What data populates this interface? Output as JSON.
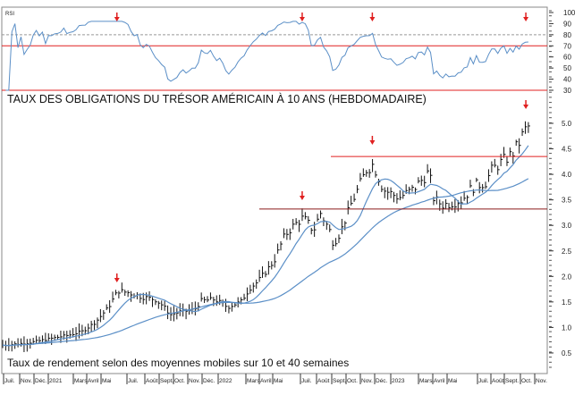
{
  "chart_data": {
    "type": "bar",
    "title": "TAUX DES OBLIGATIONS DU TRÉSOR AMÉRICAIN À 10 ANS (HEBDOMADAIRE)",
    "subtitle": "Taux de rendement selon des moyennes mobiles sur 10 et 40 semaines",
    "rsi_label": "RSI",
    "rsi_ticks": [
      "100",
      "90",
      "80",
      "70",
      "60",
      "50",
      "40",
      "30"
    ],
    "rsi_levels": {
      "dashed": 80,
      "upper": 70,
      "lower": 30
    },
    "y_ticks": [
      "5.0",
      "4.5",
      "4.0",
      "3.5",
      "3.0",
      "2.5",
      "2.0",
      "1.5",
      "1.0",
      "0.5"
    ],
    "ylim": [
      0.3,
      5.3
    ],
    "resistance_levels": [
      4.35,
      3.32
    ],
    "x_ticks": [
      "Juil.",
      "Nov.",
      "Déc.",
      "2021",
      "Mars",
      "Avril",
      "Mai",
      "Juil.",
      "Août",
      "Sept.",
      "Oct.",
      "Nov.",
      "Déc.",
      "2022",
      "Mars",
      "Avril",
      "Mai",
      "Juil.",
      "Août",
      "Sept.",
      "Oct.",
      "Nov.",
      "Déc.",
      "2023",
      "Mars",
      "Avril",
      "Mai",
      "Juil.",
      "Août",
      "Sept.",
      "Oct.",
      "Nov."
    ],
    "series_keypoints_month_yield": [
      [
        0,
        0.65
      ],
      [
        2,
        0.7
      ],
      [
        4,
        0.8
      ],
      [
        5,
        0.85
      ],
      [
        6,
        0.92
      ],
      [
        7,
        1.1
      ],
      [
        8,
        1.4
      ],
      [
        8.7,
        1.72
      ],
      [
        9.5,
        1.68
      ],
      [
        10.5,
        1.6
      ],
      [
        11.5,
        1.55
      ],
      [
        12,
        1.45
      ],
      [
        12.7,
        1.25
      ],
      [
        13.3,
        1.3
      ],
      [
        14.5,
        1.35
      ],
      [
        15,
        1.52
      ],
      [
        16,
        1.55
      ],
      [
        17,
        1.4
      ],
      [
        18,
        1.5
      ],
      [
        18.7,
        1.78
      ],
      [
        19.3,
        1.9
      ],
      [
        20.5,
        2.3
      ],
      [
        21.3,
        2.8
      ],
      [
        22,
        3.0
      ],
      [
        22.7,
        3.15
      ],
      [
        23.5,
        2.9
      ],
      [
        24,
        3.25
      ],
      [
        24.7,
        2.9
      ],
      [
        25,
        2.65
      ],
      [
        25.5,
        2.85
      ],
      [
        26.3,
        3.4
      ],
      [
        27,
        3.8
      ],
      [
        27.5,
        4.1
      ],
      [
        28,
        4.2
      ],
      [
        28.8,
        3.7
      ],
      [
        29.5,
        3.6
      ],
      [
        30,
        3.55
      ],
      [
        31,
        3.7
      ],
      [
        31.7,
        3.9
      ],
      [
        32.2,
        4.05
      ],
      [
        32.6,
        3.5
      ],
      [
        33.3,
        3.4
      ],
      [
        34,
        3.45
      ],
      [
        34.7,
        3.5
      ],
      [
        35.5,
        3.75
      ],
      [
        36.5,
        3.85
      ],
      [
        37,
        4.1
      ],
      [
        38,
        4.3
      ],
      [
        38.5,
        4.4
      ],
      [
        39,
        4.6
      ],
      [
        39.4,
        4.85
      ],
      [
        39.8,
        4.95
      ]
    ],
    "moving_averages": [
      "10 semaines",
      "40 semaines"
    ],
    "peak_arrows_month": [
      8.7,
      22.7,
      28,
      39.6
    ],
    "rsi_arrows_month": [
      8.7,
      22.7,
      28,
      39.6
    ],
    "colors": {
      "bars": "#111111",
      "ma": "#5b8fc7",
      "annot": "#e02020"
    }
  }
}
